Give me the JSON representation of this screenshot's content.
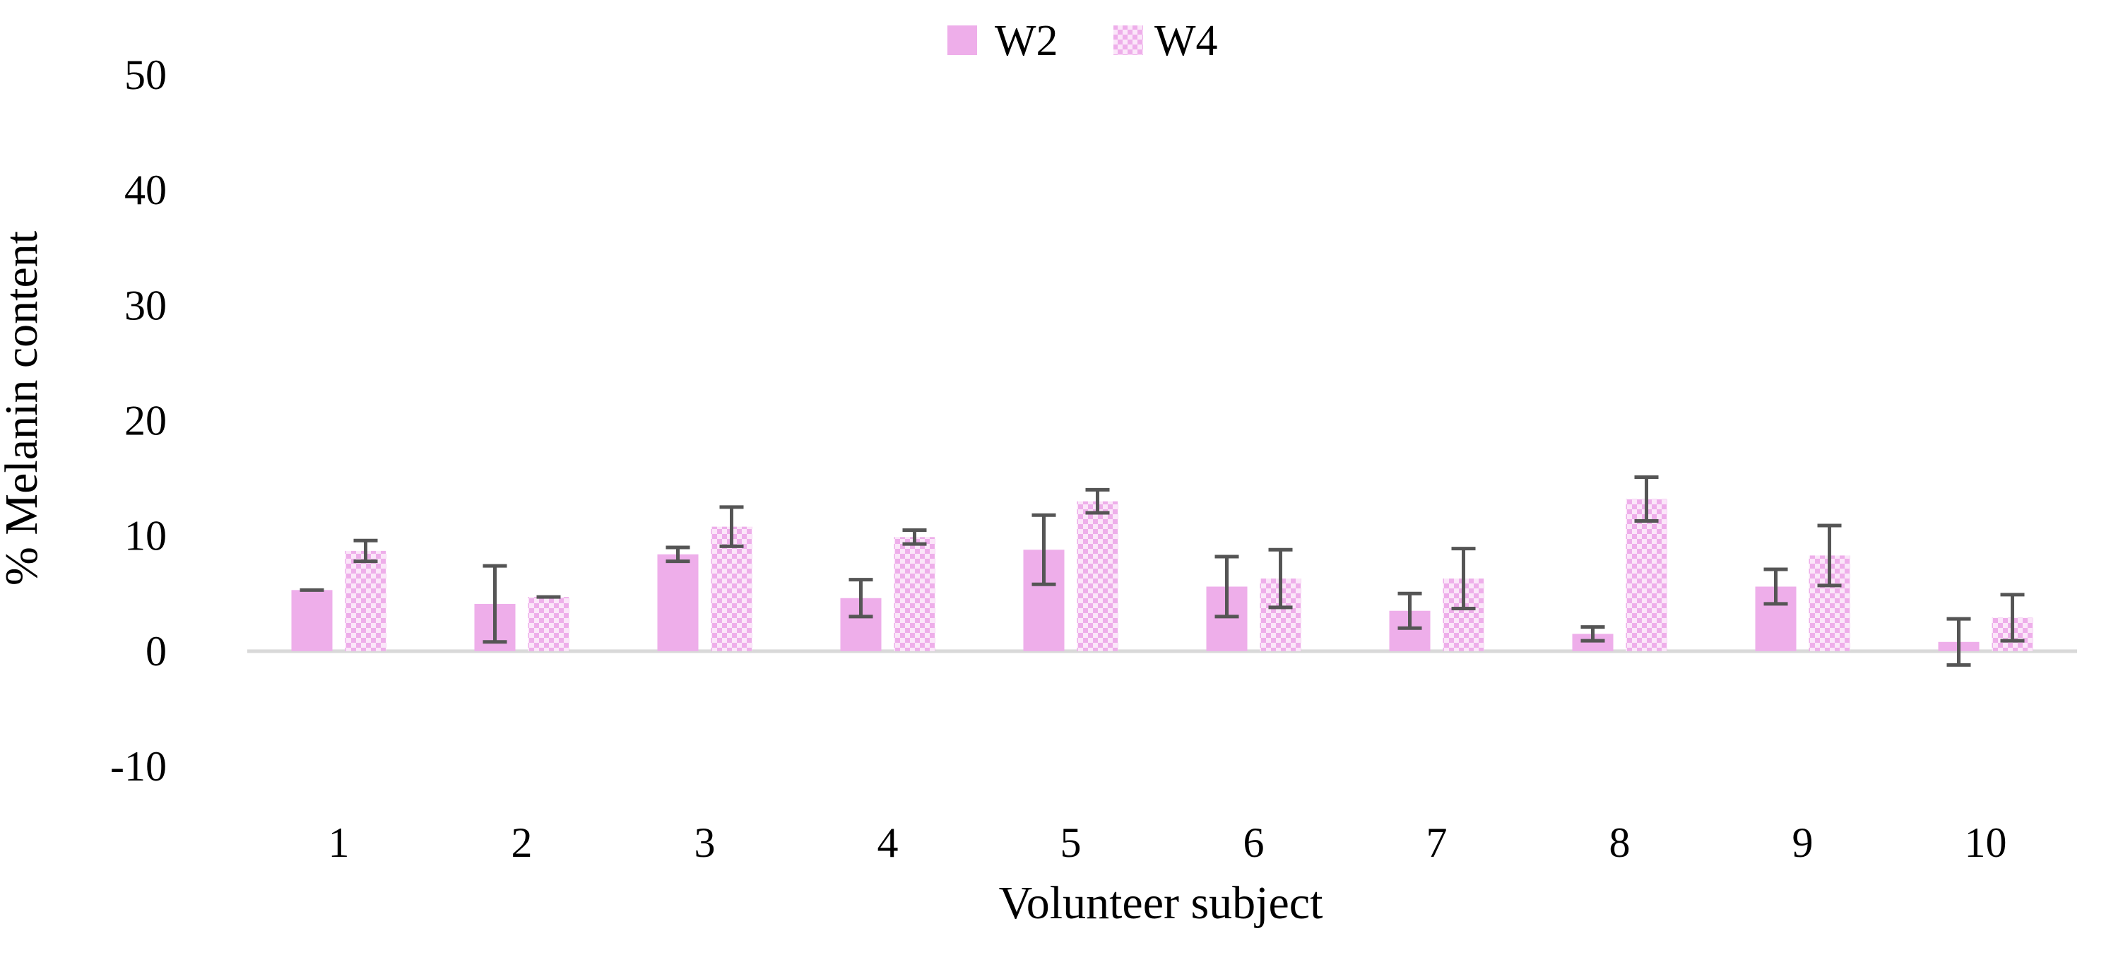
{
  "chart_data": {
    "type": "bar",
    "title": "",
    "xlabel": "Volunteer subject",
    "ylabel": "% Melanin content",
    "ylim": [
      -10,
      50
    ],
    "yticks": [
      -10,
      0,
      10,
      20,
      30,
      40,
      50
    ],
    "grid": false,
    "legend_position": "top-center",
    "categories": [
      "1",
      "2",
      "3",
      "4",
      "5",
      "6",
      "7",
      "8",
      "9",
      "10"
    ],
    "series": [
      {
        "name": "W2",
        "fill": "solid",
        "values": [
          5.3,
          4.1,
          8.4,
          4.6,
          8.8,
          5.6,
          3.5,
          1.5,
          5.6,
          0.8
        ],
        "errors": [
          0.0,
          3.3,
          0.6,
          1.6,
          3.0,
          2.6,
          1.5,
          0.6,
          1.5,
          2.0
        ]
      },
      {
        "name": "W4",
        "fill": "dotted",
        "values": [
          8.7,
          4.7,
          10.8,
          9.9,
          13.0,
          6.3,
          6.3,
          13.2,
          8.3,
          2.9
        ],
        "errors": [
          0.9,
          0.0,
          1.7,
          0.6,
          1.0,
          2.5,
          2.6,
          1.9,
          2.6,
          2.0
        ]
      }
    ],
    "colors": {
      "bar": "#eeaeea",
      "pattern_bg": "#fbe6f9",
      "error_bar": "#555555",
      "axis_line": "#d9d9d9"
    }
  }
}
